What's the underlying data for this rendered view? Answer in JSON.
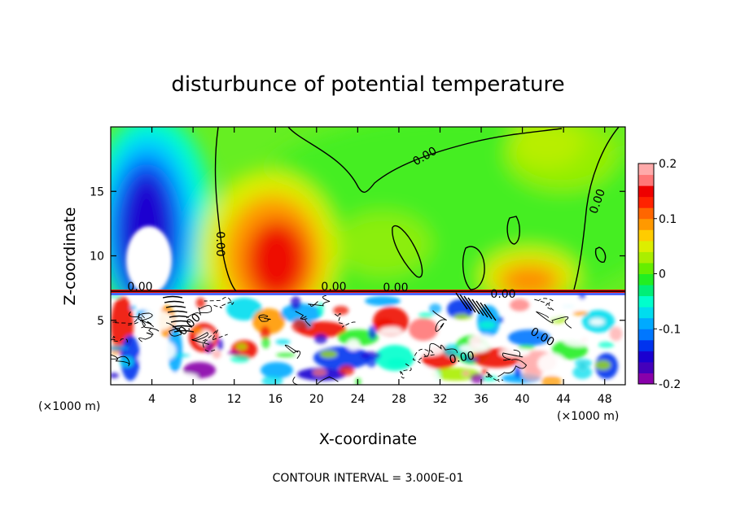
{
  "chart_data": {
    "type": "heatmap",
    "title": "disturbunce of potential temperature",
    "xlabel": "X-coordinate",
    "ylabel": "Z-coordinate",
    "x_unit_left": "(×1000 m)",
    "x_unit_right": "(×1000 m)",
    "xlim": [
      0,
      50
    ],
    "ylim": [
      0,
      20
    ],
    "x_ticks": [
      "4",
      "8",
      "12",
      "16",
      "20",
      "24",
      "28",
      "32",
      "36",
      "40",
      "44",
      "48"
    ],
    "x_tick_values": [
      4,
      8,
      12,
      16,
      20,
      24,
      28,
      32,
      36,
      40,
      44,
      48
    ],
    "y_ticks": [
      "5",
      "10",
      "15"
    ],
    "y_tick_values": [
      5,
      10,
      15
    ],
    "colorbar": {
      "range": [
        -0.2,
        0.2
      ],
      "tick_labels": [
        "0.2",
        "0.1",
        "0",
        "-0.1",
        "-0.2"
      ],
      "tick_values": [
        0.2,
        0.1,
        0,
        -0.1,
        -0.2
      ],
      "colors": [
        "#8800aa",
        "#4400bb",
        "#1a00d0",
        "#0033ee",
        "#0077ff",
        "#00aaff",
        "#00ddee",
        "#00ffcc",
        "#00ee77",
        "#22ee22",
        "#66ee00",
        "#aaee00",
        "#ddee00",
        "#ffcc00",
        "#ff9900",
        "#ff6600",
        "#ff2200",
        "#ee0000",
        "#ff7777",
        "#ffaaaa"
      ]
    },
    "contour_labels": [
      "0.00",
      "0.00",
      "0.00",
      "0.00",
      "0.00",
      "0.00",
      "0.00",
      "0.00",
      "0.00",
      "0.00"
    ],
    "contour_interval_text": "CONTOUR INTERVAL = 3.000E-01",
    "features": [
      {
        "kind": "cold anomaly",
        "x": 4.5,
        "z": 13,
        "value": -0.18
      },
      {
        "kind": "warm anomaly",
        "x": 16.5,
        "z": 11,
        "value": 0.15
      },
      {
        "kind": "warm anomaly",
        "x": 42,
        "z": 8.5,
        "value": 0.1
      },
      {
        "kind": "warm anomaly",
        "x": 42,
        "z": 18,
        "value": 0.07
      }
    ]
  }
}
